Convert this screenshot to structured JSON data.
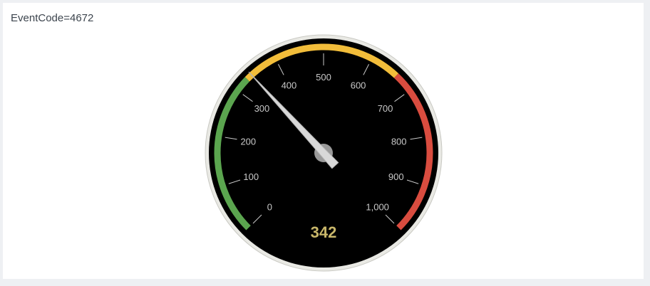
{
  "panel": {
    "title": "EventCode=4672"
  },
  "gauge": {
    "value": 342,
    "value_label": "342",
    "min": 0,
    "max": 1000,
    "ticks": [
      {
        "value": 0,
        "label": "0"
      },
      {
        "value": 100,
        "label": "100"
      },
      {
        "value": 200,
        "label": "200"
      },
      {
        "value": 300,
        "label": "300"
      },
      {
        "value": 400,
        "label": "400"
      },
      {
        "value": 500,
        "label": "500"
      },
      {
        "value": 600,
        "label": "600"
      },
      {
        "value": 700,
        "label": "700"
      },
      {
        "value": 800,
        "label": "800"
      },
      {
        "value": 900,
        "label": "900"
      },
      {
        "value": 1000,
        "label": "1,000"
      }
    ],
    "ranges": [
      {
        "from": 0,
        "to": 330,
        "color": "#5ba54f",
        "name": "green-range"
      },
      {
        "from": 330,
        "to": 660,
        "color": "#f2bd3a",
        "name": "yellow-range"
      },
      {
        "from": 660,
        "to": 1000,
        "color": "#d94c3f",
        "name": "red-range"
      }
    ],
    "colors": {
      "face": "#000000",
      "bezel": "#e9e9e4",
      "tick": "#c8c8c8",
      "value_text": "#c9b76a",
      "needle": "#d8d8d8"
    }
  }
}
